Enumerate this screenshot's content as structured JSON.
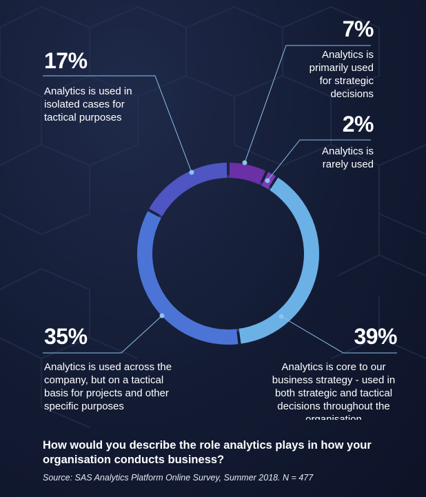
{
  "chart_data": {
    "type": "pie",
    "categories": [
      "Analytics is primarily used for strategic decisions",
      "Analytics is rarely used",
      "Analytics is core to our business strategy - used in both strategic and tactical decisions throughout the organisation",
      "Analytics is used across the company, but on a tactical basis for projects and other specific purposes",
      "Analytics is used in isolated cases for tactical purposes"
    ],
    "values": [
      7,
      2,
      39,
      35,
      17
    ],
    "value_labels": [
      "7%",
      "2%",
      "39%",
      "35%",
      "17%"
    ],
    "colors": [
      "#6b2fa6",
      "#7a3bb8",
      "#6bb1e6",
      "#4b74d6",
      "#4f55c2"
    ],
    "donut": true
  },
  "labels": {
    "strategic_pct": "7%",
    "strategic_text": "Analytics is\nprimarily used\nfor strategic\ndecisions",
    "rarely_pct": "2%",
    "rarely_text": "Analytics is\nrarely used",
    "core_pct": "39%",
    "core_text": "Analytics is core to our\nbusiness strategy - used in\nboth strategic and tactical\ndecisions throughout the\norganisation",
    "across_pct": "35%",
    "across_text": "Analytics is used across the\ncompany, but on a tactical\nbasis for projects and other\nspecific purposes",
    "isolated_pct": "17%",
    "isolated_text": "Analytics is used in\nisolated cases for\ntactical purposes"
  },
  "question": "How would you describe the role analytics plays in how your organisation conducts business?",
  "source": "Source: SAS Analytics Platform Online Survey, Summer 2018. N = 477",
  "colors": {
    "background": "#131b33",
    "leader_line": "#8fc3ee",
    "text": "#ffffff"
  }
}
